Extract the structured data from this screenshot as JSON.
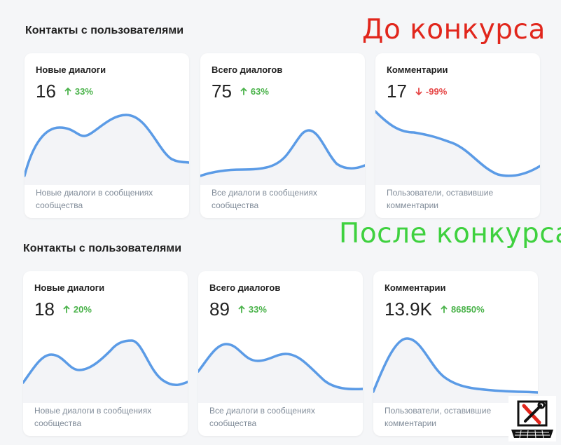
{
  "overlays": {
    "before": {
      "text": "До конкурса",
      "color": "#e1261c"
    },
    "after": {
      "text": "После конкурса",
      "color": "#3fd13f"
    }
  },
  "before": {
    "section_title": "Контакты с пользователями",
    "cards": [
      {
        "title": "Новые диалоги",
        "value": "16",
        "delta": "33%",
        "trend": "up",
        "description": "Новые диалоги в сообщениях сообщества"
      },
      {
        "title": "Всего диалогов",
        "value": "75",
        "delta": "63%",
        "trend": "up",
        "description": "Все диалоги в сообщениях сообщества"
      },
      {
        "title": "Комментарии",
        "value": "17",
        "delta": "-99%",
        "trend": "down",
        "description": "Пользователи, оставившие комментарии"
      }
    ]
  },
  "after": {
    "section_title": "Контакты с пользователями",
    "cards": [
      {
        "title": "Новые диалоги",
        "value": "18",
        "delta": "20%",
        "trend": "up",
        "description": "Новые диалоги в сообщениях сообщества"
      },
      {
        "title": "Всего диалогов",
        "value": "89",
        "delta": "33%",
        "trend": "up",
        "description": "Все диалоги в сообщениях сообщества"
      },
      {
        "title": "Комментарии",
        "value": "13.9K",
        "delta": "86850%",
        "trend": "up",
        "description": "Пользователи, оставившие комментарии"
      }
    ]
  },
  "colors": {
    "line": "#5b9be6",
    "up": "#4bb34b",
    "down": "#e64646"
  },
  "icons": {
    "trend_up": "arrow-up-icon",
    "trend_down": "arrow-down-icon",
    "logo": "laptop-tools-icon"
  }
}
